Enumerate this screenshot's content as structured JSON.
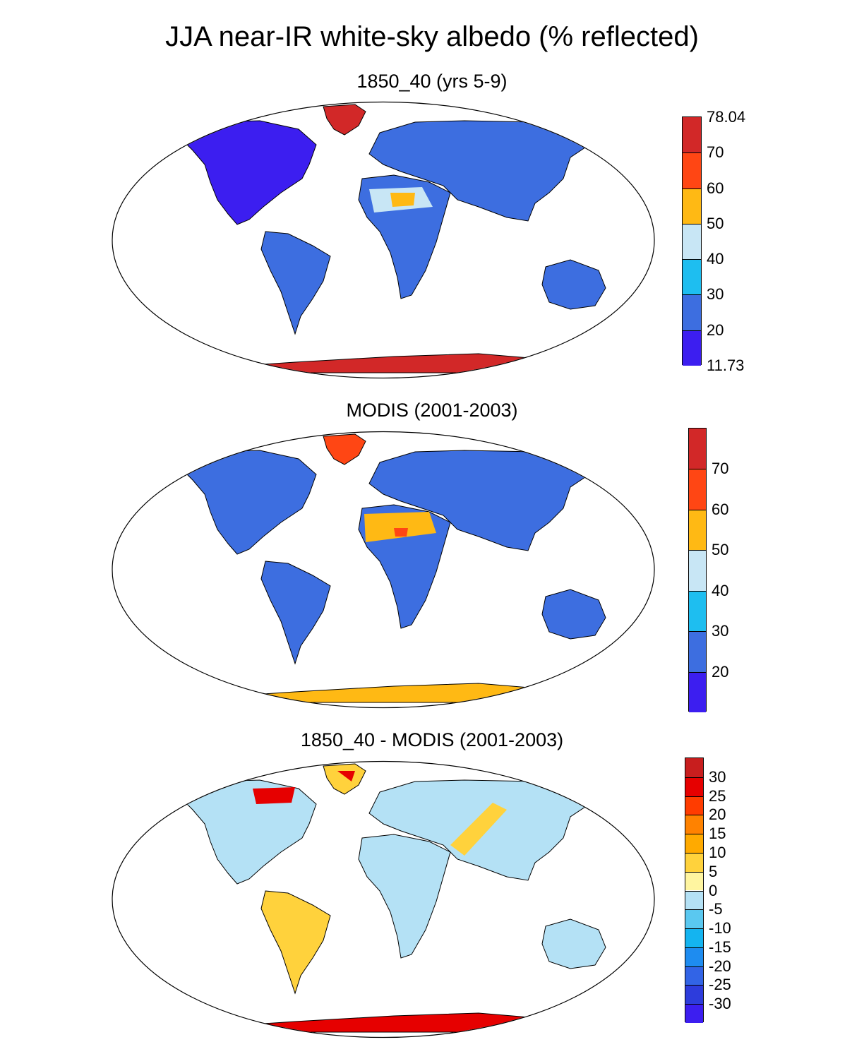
{
  "title": "JJA near-IR white-sky albedo (% reflected)",
  "panels": [
    {
      "id": "model",
      "title": "1850_40 (yrs 5-9)",
      "colorbar": {
        "colors": [
          "#3c1ef0",
          "#3d6ee0",
          "#1ebef0",
          "#c8e6f5",
          "#ffb914",
          "#ff4614",
          "#d22828"
        ],
        "labels": [
          "11.73",
          "20",
          "30",
          "40",
          "50",
          "60",
          "70",
          "78.04"
        ]
      }
    },
    {
      "id": "modis",
      "title": "MODIS (2001-2003)",
      "colorbar": {
        "colors": [
          "#3c1ef0",
          "#3d6ee0",
          "#1ebef0",
          "#c8e6f5",
          "#ffb914",
          "#ff4614",
          "#d22828"
        ],
        "labels": [
          "20",
          "30",
          "40",
          "50",
          "60",
          "70"
        ]
      }
    },
    {
      "id": "diff",
      "title": "1850_40 - MODIS (2001-2003)",
      "colorbar": {
        "colors": [
          "#3c1ef0",
          "#2d3cdc",
          "#3264e6",
          "#1e8cf0",
          "#14b4f0",
          "#5ac8f0",
          "#b4e1f5",
          "#fff5a0",
          "#ffd23c",
          "#ffaa00",
          "#ff8200",
          "#ff3c00",
          "#e60000",
          "#c81e1e"
        ],
        "labels": [
          "-30",
          "-25",
          "-20",
          "-15",
          "-10",
          "-5",
          "0",
          "5",
          "10",
          "15",
          "20",
          "25",
          "30"
        ]
      }
    }
  ]
}
